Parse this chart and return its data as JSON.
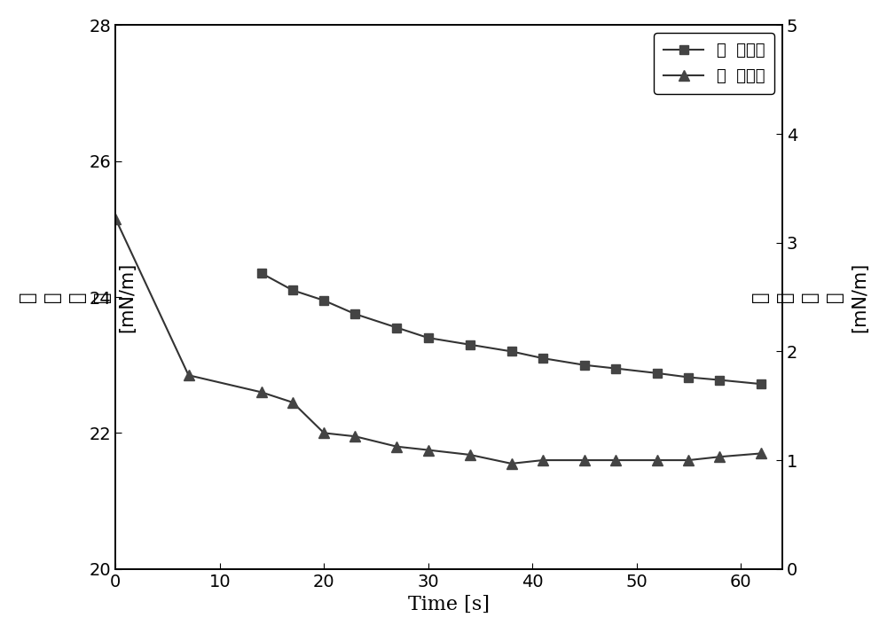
{
  "surface_tension_x": [
    14,
    17,
    20,
    23,
    27,
    30,
    34,
    38,
    41,
    45,
    48,
    52,
    55,
    58,
    62
  ],
  "surface_tension_y": [
    24.35,
    24.1,
    23.95,
    23.75,
    23.55,
    23.4,
    23.3,
    23.2,
    23.1,
    23.0,
    22.95,
    22.88,
    22.82,
    22.78,
    22.72
  ],
  "interfacial_tension_x": [
    0,
    7,
    14,
    17,
    20,
    23,
    27,
    30,
    34,
    38,
    41,
    45,
    48,
    52,
    55,
    58,
    62
  ],
  "interfacial_tension_y": [
    25.15,
    22.85,
    22.6,
    22.45,
    22.0,
    21.95,
    21.8,
    21.75,
    21.68,
    21.55,
    21.6,
    21.6,
    21.6,
    21.6,
    21.6,
    21.65,
    21.7
  ],
  "left_ylim": [
    20,
    28
  ],
  "right_ylim": [
    0,
    5
  ],
  "xlim": [
    0,
    64
  ],
  "left_yticks": [
    20,
    22,
    24,
    26,
    28
  ],
  "right_yticks": [
    0,
    1,
    2,
    3,
    4,
    5
  ],
  "xticks": [
    0,
    10,
    20,
    30,
    40,
    50,
    60
  ],
  "xlabel": "Time [s]",
  "left_ylabel": "表\n面\n张\n力\n[mN/m]",
  "right_ylabel": "界\n面\n张\n力\n[mN/m]",
  "legend_label1": "表  面张力",
  "legend_label2": "界  面张力",
  "line_color": "#333333",
  "marker_color": "#444444",
  "bg_color": "#ffffff",
  "fontsize_ticks": 14,
  "fontsize_legend": 13,
  "fontsize_xlabel": 16,
  "fontsize_ylabel": 15
}
